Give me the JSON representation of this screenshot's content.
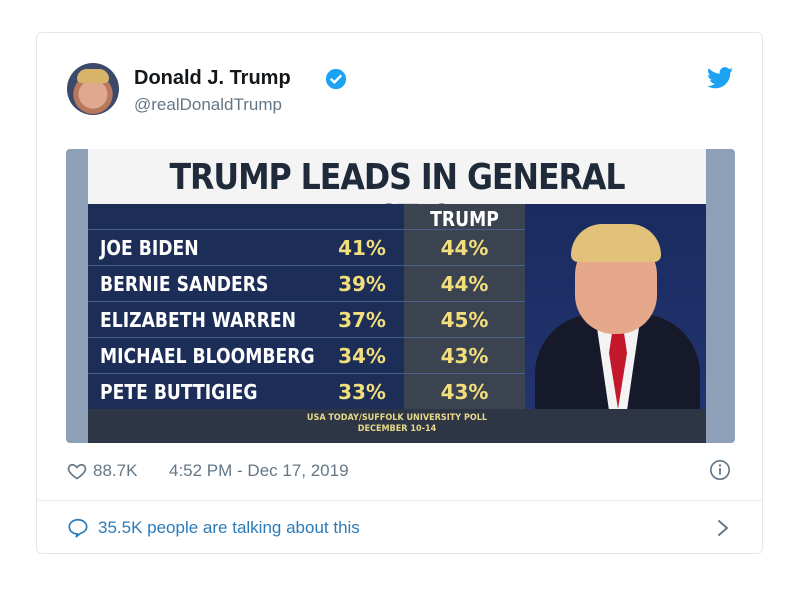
{
  "tweet": {
    "author_name": "Donald J. Trump",
    "handle": "@realDonaldTrump",
    "likes": "88.7K",
    "timestamp": "4:52 PM - Dec 17, 2019",
    "talking": "35.5K people are talking about this"
  },
  "graphic": {
    "headline": "TRUMP LEADS IN GENERAL ELECTION",
    "column_header": "TRUMP",
    "rows": [
      {
        "candidate": "JOE BIDEN",
        "candidate_pct": "41%",
        "trump_pct": "44%"
      },
      {
        "candidate": "BERNIE SANDERS",
        "candidate_pct": "39%",
        "trump_pct": "44%"
      },
      {
        "candidate": "ELIZABETH WARREN",
        "candidate_pct": "37%",
        "trump_pct": "45%"
      },
      {
        "candidate": "MICHAEL BLOOMBERG",
        "candidate_pct": "34%",
        "trump_pct": "43%"
      },
      {
        "candidate": "PETE BUTTIGIEG",
        "candidate_pct": "33%",
        "trump_pct": "43%"
      }
    ],
    "source_line1": "USA TODAY/SUFFOLK UNIVERSITY POLL",
    "source_line2": "DECEMBER 10-14"
  },
  "icons": {
    "verified": "verified-badge-icon",
    "brand": "twitter-bird-icon",
    "like": "heart-icon",
    "info": "info-icon",
    "reply": "speech-bubble-icon",
    "more": "chevron-right-icon"
  },
  "colors": {
    "twitter_blue": "#1da1f2",
    "text_primary": "#14171a",
    "text_secondary": "#657786",
    "link": "#2b7bb9",
    "graphic_navy": "#1c2d57",
    "graphic_yellow": "#f2df7c"
  }
}
